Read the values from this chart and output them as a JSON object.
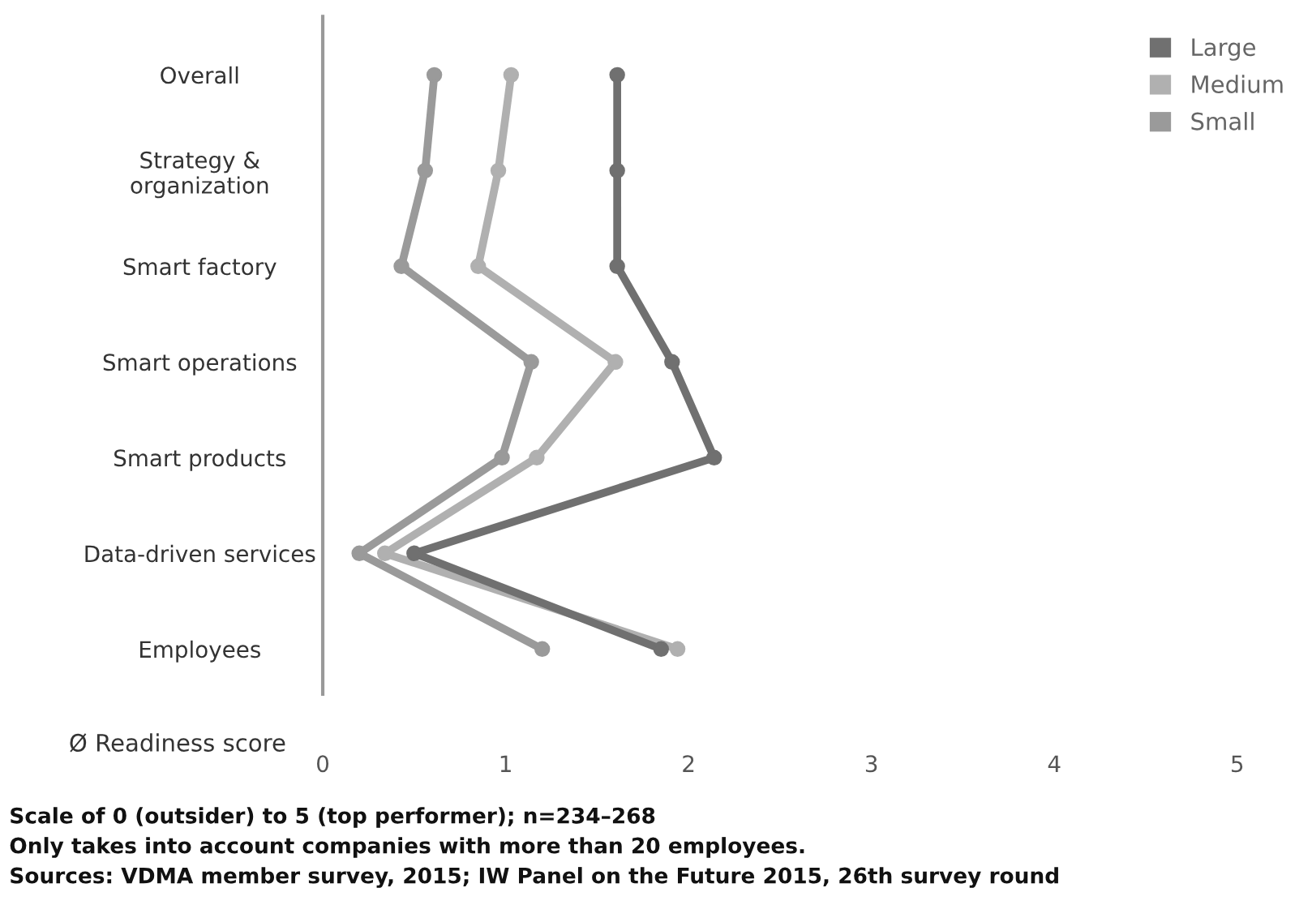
{
  "chart_data": {
    "type": "line",
    "orientation": "horizontal",
    "xlabel": "Ø Readiness score",
    "categories": [
      "Overall",
      "Strategy &\norganization",
      "Smart factory",
      "Smart operations",
      "Smart products",
      "Data-driven services",
      "Employees"
    ],
    "series": [
      {
        "name": "Large",
        "color": "#707070",
        "values": [
          1.61,
          1.61,
          1.61,
          1.91,
          2.14,
          0.5,
          1.85
        ]
      },
      {
        "name": "Medium",
        "color": "#b0b0b0",
        "values": [
          1.03,
          0.96,
          0.85,
          1.6,
          1.17,
          0.34,
          1.94
        ]
      },
      {
        "name": "Small",
        "color": "#9a9a9a",
        "values": [
          0.61,
          0.56,
          0.43,
          1.14,
          0.98,
          0.2,
          1.2
        ]
      }
    ],
    "xlim": [
      0,
      5
    ],
    "xticks": [
      0,
      1,
      2,
      3,
      4,
      5
    ],
    "marker": "circle",
    "line_style": "solid",
    "grid": false,
    "legend": "top right",
    "annotations": [
      "Scale of 0 (outsider) to 5 (top performer); n=234–268",
      "Only takes into account companies with more than 20 employees.",
      "Sources: VDMA member survey, 2015; IW Panel on the Future 2015, 26th survey round"
    ]
  }
}
